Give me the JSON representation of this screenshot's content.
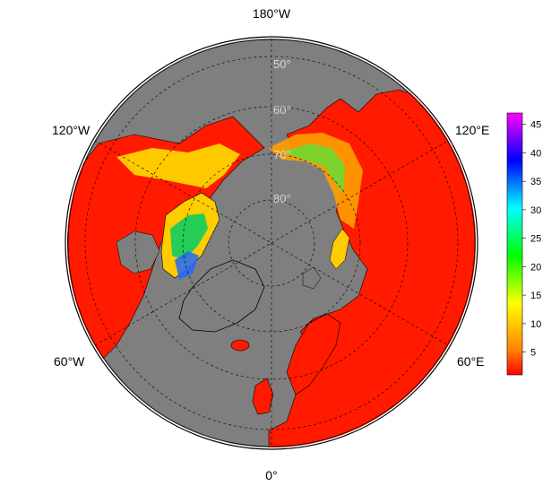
{
  "map": {
    "projection": "north-polar-stereographic",
    "longitude_labels": {
      "top": "180°W",
      "upper_left": "120°W",
      "upper_right": "120°E",
      "lower_left": "60°W",
      "lower_right": "60°E",
      "bottom": "0°"
    },
    "latitude_labels": [
      "50°",
      "60°",
      "70°",
      "80°"
    ],
    "colors": {
      "ocean": "#7f7f7f",
      "land_low_value": "#ff1a00",
      "coastline": "#000000",
      "graticule": "#000000"
    }
  },
  "colorbar": {
    "tick_labels": [
      "45",
      "40",
      "35",
      "30",
      "25",
      "20",
      "15",
      "10",
      "5"
    ],
    "range": [
      1,
      47
    ],
    "colormap": "rainbow",
    "gradient_stops": [
      "#ff00ff",
      "#8000ff",
      "#0000ff",
      "#0080ff",
      "#00ffff",
      "#00ff80",
      "#00ff00",
      "#80ff00",
      "#ffff00",
      "#ffbf00",
      "#ff8000",
      "#ff0000"
    ]
  }
}
